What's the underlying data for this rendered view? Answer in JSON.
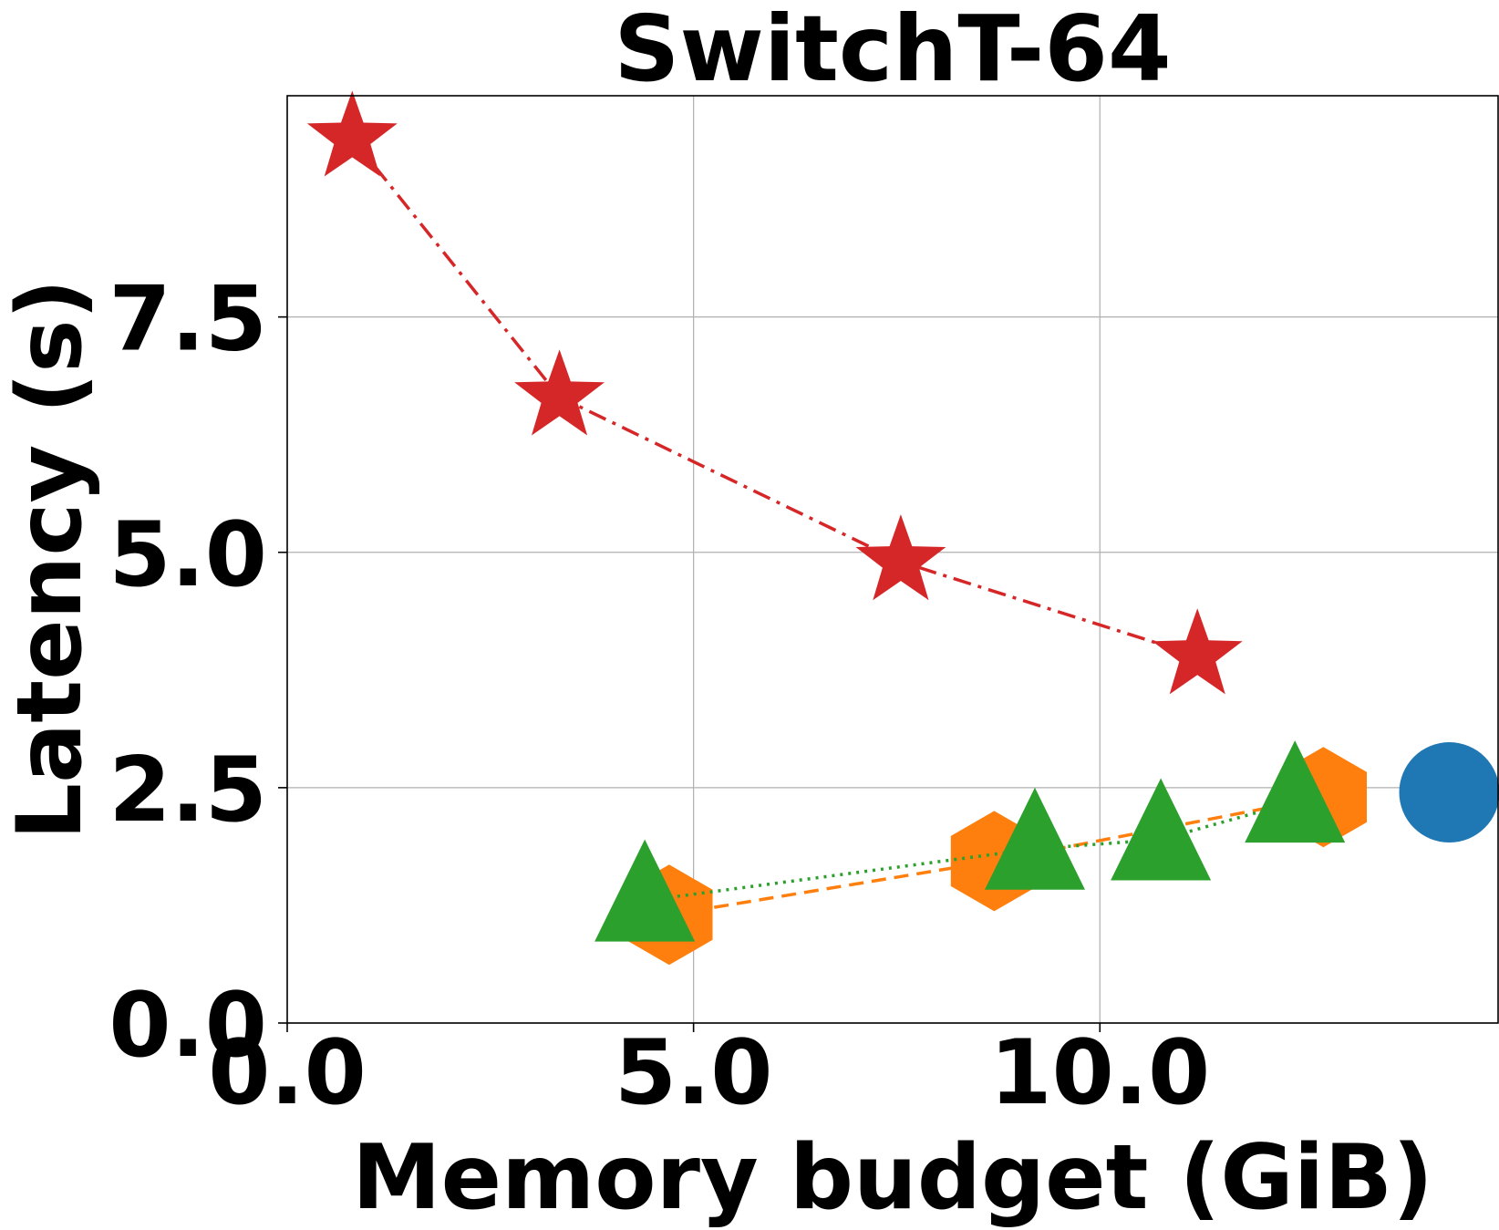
{
  "chart_data": {
    "type": "scatter",
    "title": "SwitchT-64",
    "xlabel": "Memory budget (GiB)",
    "ylabel": "Latency (s)",
    "xlim": [
      0.0,
      14.9
    ],
    "ylim": [
      0.0,
      9.85
    ],
    "xticks": [
      0.0,
      5.0,
      10.0
    ],
    "xtick_labels": [
      "0.0",
      "5.0",
      "10.0"
    ],
    "yticks": [
      0.0,
      2.5,
      5.0,
      7.5
    ],
    "ytick_labels": [
      "0.0",
      "2.5",
      "5.0",
      "7.5"
    ],
    "grid": true,
    "series": [
      {
        "marker": "star",
        "color": "#d62728",
        "line_style": "dashdot",
        "points": [
          [
            0.8,
            9.4
          ],
          [
            3.35,
            6.65
          ],
          [
            7.55,
            4.9
          ],
          [
            11.2,
            3.9
          ]
        ]
      },
      {
        "marker": "hexagon",
        "color": "#ff7f0e",
        "line_style": "dashed",
        "points": [
          [
            4.7,
            1.15
          ],
          [
            8.7,
            1.72
          ],
          [
            12.75,
            2.4
          ]
        ]
      },
      {
        "marker": "triangle",
        "color": "#2ca02c",
        "line_style": "dotted",
        "points": [
          [
            4.4,
            1.3
          ],
          [
            9.2,
            1.85
          ],
          [
            10.75,
            1.95
          ],
          [
            12.4,
            2.35
          ]
        ]
      },
      {
        "marker": "circle",
        "color": "#1f77b4",
        "line_style": "none",
        "points": [
          [
            14.3,
            2.45
          ]
        ]
      }
    ]
  }
}
